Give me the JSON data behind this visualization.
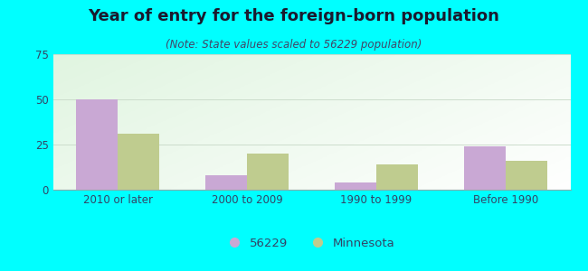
{
  "title": "Year of entry for the foreign-born population",
  "subtitle": "(Note: State values scaled to 56229 population)",
  "categories": [
    "2010 or later",
    "2000 to 2009",
    "1990 to 1999",
    "Before 1990"
  ],
  "values_56229": [
    50,
    8,
    4,
    24
  ],
  "values_minnesota": [
    31,
    20,
    14,
    16
  ],
  "color_56229": "#c9a8d4",
  "color_minnesota": "#bfcc8f",
  "background_outer": "#00ffff",
  "ylim": [
    0,
    75
  ],
  "yticks": [
    0,
    25,
    50,
    75
  ],
  "legend_label_56229": "56229",
  "legend_label_minnesota": "Minnesota",
  "bar_width": 0.32,
  "title_fontsize": 13,
  "subtitle_fontsize": 8.5,
  "tick_fontsize": 8.5,
  "legend_fontsize": 9.5,
  "title_color": "#1a1a2e",
  "subtitle_color": "#444466",
  "tick_color": "#334466"
}
